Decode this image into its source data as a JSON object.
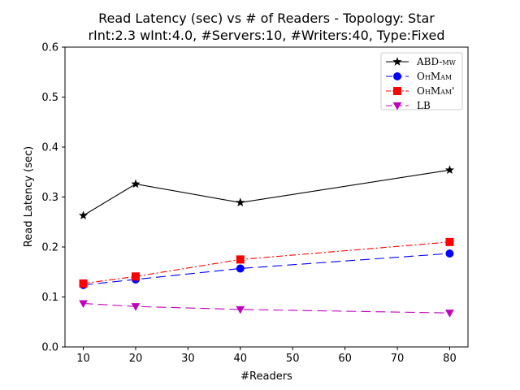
{
  "chart_data": {
    "type": "line",
    "title_line1": "Read Latency (sec) vs # of Readers - Topology: Star",
    "title_line2": "rInt:2.3 wInt:4.0, #Servers:10, #Writers:40, Type:Fixed",
    "xlabel": "#Readers",
    "ylabel": "Read Latency (sec)",
    "xlim": [
      6.5,
      83.5
    ],
    "ylim": [
      0.0,
      0.6
    ],
    "xticks": [
      10,
      20,
      30,
      40,
      50,
      60,
      70,
      80
    ],
    "yticks": [
      0.0,
      0.1,
      0.2,
      0.3,
      0.4,
      0.5,
      0.6
    ],
    "xtick_labels": [
      "10",
      "20",
      "30",
      "40",
      "50",
      "60",
      "70",
      "80"
    ],
    "ytick_labels": [
      "0.0",
      "0.1",
      "0.2",
      "0.3",
      "0.4",
      "0.5",
      "0.6"
    ],
    "grid": false,
    "legend_position": "top-right",
    "x": [
      10,
      20,
      40,
      80
    ],
    "series": [
      {
        "name": "ABD-mw",
        "values": [
          0.263,
          0.326,
          0.289,
          0.354
        ],
        "color": "#000000",
        "marker": "star",
        "dash": "solid"
      },
      {
        "name": "OhMam",
        "values": [
          0.124,
          0.135,
          0.157,
          0.187
        ],
        "color": "#0000ff",
        "marker": "circle",
        "dash": "long-dash"
      },
      {
        "name": "OhMam'",
        "values": [
          0.127,
          0.141,
          0.175,
          0.21
        ],
        "color": "#ff0000",
        "marker": "square",
        "dash": "dash-dot"
      },
      {
        "name": "LB",
        "values": [
          0.087,
          0.081,
          0.075,
          0.068
        ],
        "color": "#bf00bf",
        "marker": "triangle-down",
        "dash": "long-dash"
      }
    ]
  }
}
